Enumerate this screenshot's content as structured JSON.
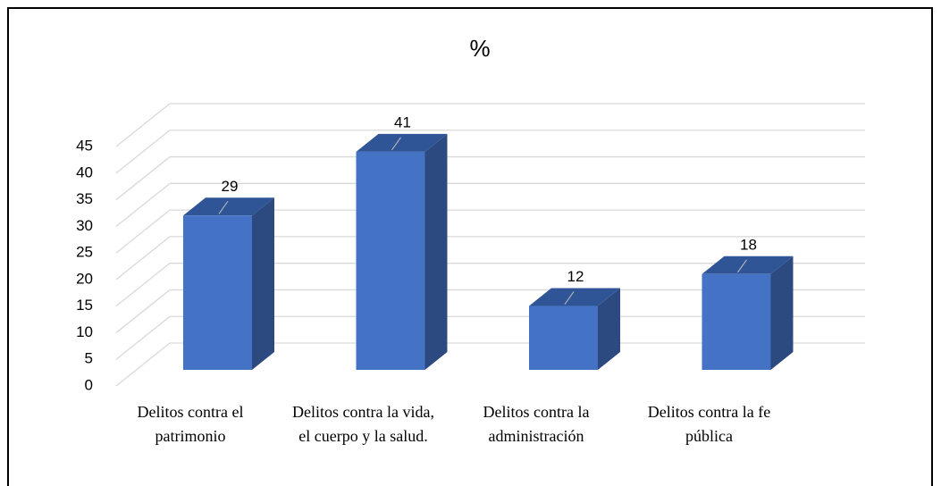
{
  "chart_data": {
    "type": "bar3d",
    "title": "%",
    "categories": [
      "Delitos contra el patrimonio",
      "Delitos contra la vida, el cuerpo y la salud.",
      "Delitos contra la administración",
      "Delitos contra la fe pública"
    ],
    "values": [
      29,
      41,
      12,
      18
    ],
    "color": "#4472c4",
    "ylim": [
      0,
      45
    ],
    "yticks": [
      0,
      5,
      10,
      15,
      20,
      25,
      30,
      35,
      40,
      45
    ],
    "grid": true
  }
}
